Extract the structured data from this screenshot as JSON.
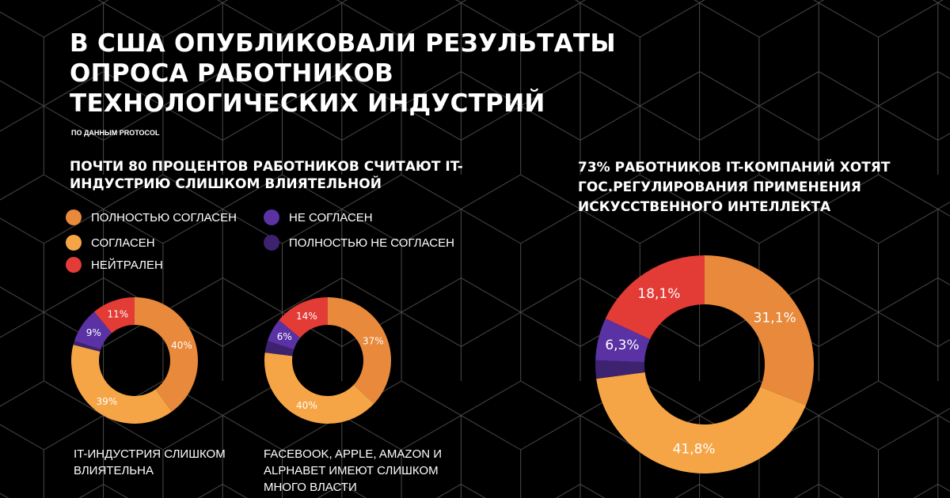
{
  "header": {
    "title": "В США ОПУБЛИКОВАЛИ РЕЗУЛЬТАТЫ ОПРОСА РАБОТНИКОВ ТЕХНОЛОГИЧЕСКИХ ИНДУСТРИЙ",
    "source": "ПО ДАННЫМ PROTOCOL"
  },
  "left_section": {
    "heading": "ПОЧТИ 80 ПРОЦЕНТОВ РАБОТНИКОВ СЧИТАЮТ IT-ИНДУСТРИЮ СЛИШКОМ ВЛИЯТЕЛЬНОЙ"
  },
  "right_section": {
    "heading": "73% РАБОТНИКОВ IT-КОМПАНИЙ ХОТЯТ ГОС.РЕГУЛИРОВАНИЯ ПРИМЕНЕНИЯ ИСКУССТВЕННОГО ИНТЕЛЛЕКТА"
  },
  "legend": [
    {
      "label": "ПОЛНОСТЬЮ СОГЛАСЕН",
      "color": "#e8893b"
    },
    {
      "label": "СОГЛАСЕН",
      "color": "#f5a545"
    },
    {
      "label": "НЕЙТРАЛЕН",
      "color": "#e33b35"
    },
    {
      "label": "НЕ СОГЛАСЕН",
      "color": "#5a32a3"
    },
    {
      "label": "ПОЛНОСТЬЮ НЕ СОГЛАСЕН",
      "color": "#3d2270"
    }
  ],
  "chart_data": [
    {
      "type": "pie",
      "donut": true,
      "caption": "IT-ИНДУСТРИЯ СЛИШКОМ ВЛИЯТЕЛЬНА",
      "categories": [
        "ПОЛНОСТЬЮ СОГЛАСЕН",
        "СОГЛАСЕН",
        "ПОЛНОСТЬЮ НЕ СОГЛАСЕН",
        "НЕ СОГЛАСЕН",
        "НЕЙТРАЛЕН"
      ],
      "values": [
        40,
        39,
        1,
        9,
        11
      ],
      "labels": [
        "40%",
        "39%",
        "",
        "9%",
        "11%"
      ]
    },
    {
      "type": "pie",
      "donut": true,
      "caption": "FACEBOOK, APPLE, AMAZON И ALPHABET ИМЕЮТ СЛИШКОМ МНОГО ВЛАСТИ",
      "categories": [
        "ПОЛНОСТЬЮ СОГЛАСЕН",
        "СОГЛАСЕН",
        "ПОЛНОСТЬЮ НЕ СОГЛАСЕН",
        "НЕ СОГЛАСЕН",
        "НЕЙТРАЛЕН"
      ],
      "values": [
        37,
        40,
        3,
        6,
        14
      ],
      "labels": [
        "37%",
        "40%",
        "",
        "6%",
        "14%"
      ]
    },
    {
      "type": "pie",
      "donut": true,
      "caption": "",
      "categories": [
        "ПОЛНОСТЬЮ СОГЛАСЕН",
        "СОГЛАСЕН",
        "ПОЛНОСТЬЮ НЕ СОГЛАСЕН",
        "НЕ СОГЛАСЕН",
        "НЕЙТРАЛЕН"
      ],
      "values": [
        31.1,
        41.8,
        2.7,
        6.3,
        18.1
      ],
      "labels": [
        "31,1%",
        "41,8%",
        "",
        "6,3%",
        "18,1%"
      ]
    }
  ]
}
